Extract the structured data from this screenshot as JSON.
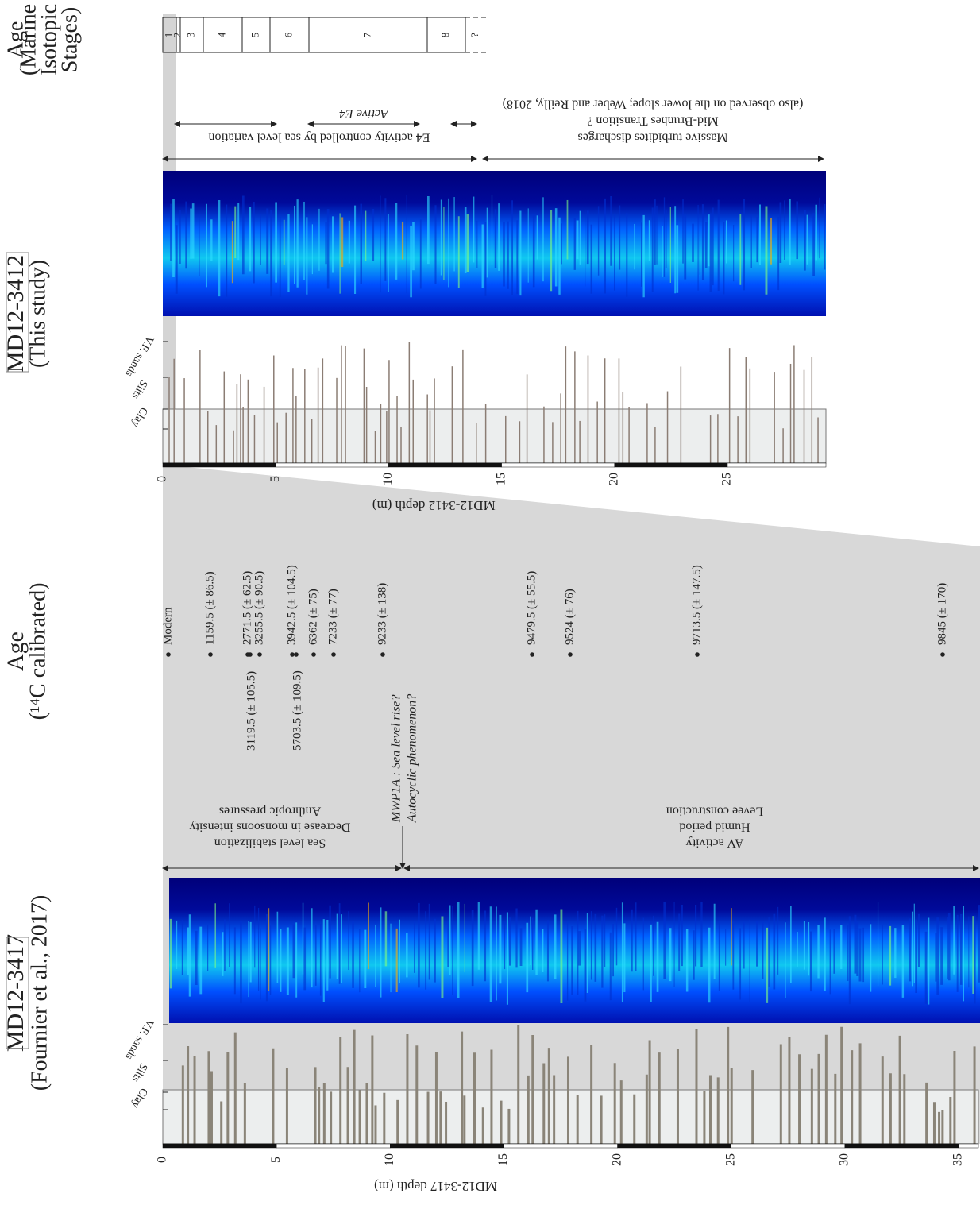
{
  "lower_core": {
    "title": "MD12-3417",
    "subtitle": "(Fournier et al., 2017)",
    "axis_label": "MD12-3417 depth (m)",
    "ticks": [
      "0",
      "5",
      "10",
      "15",
      "20",
      "25",
      "30",
      "35"
    ],
    "grain_labels": [
      "Clay",
      "Silts",
      "V.F. sands"
    ],
    "annotations": {
      "left": [
        "Sea level stabilization",
        "Decrease in monsoons intensity",
        "Anthropic pressures"
      ],
      "right": [
        "AV activity",
        "Humid period",
        "Levee construction"
      ],
      "event": [
        "MWP1A : Sea level rise?",
        "Autocyclic phenomenon?"
      ]
    }
  },
  "age_header": {
    "title": "Age",
    "subtitle": "(¹⁴C calibrated)"
  },
  "ages": [
    "Modern",
    "1159.5 (± 86.5)",
    "2771.5 (± 62.5)",
    "3255.5 (± 90.5)",
    "3119.5 (± 105.5)",
    "3942.5 (± 104.5)",
    "5703.5 (± 109.5)",
    "6362 (± 75)",
    "7233 (± 77)",
    "9233 (± 138)",
    "9479.5 (± 55.5)",
    "9524 (± 76)",
    "9713.5 (± 147.5)",
    "9845 (± 170)"
  ],
  "upper_core": {
    "title": "MD12-3412",
    "subtitle": "(This study)",
    "axis_label": "MD12-3412 depth (m)",
    "ticks": [
      "0",
      "5",
      "10",
      "15",
      "20",
      "25"
    ],
    "grain_labels": [
      "Clay",
      "Silts",
      "V.F. sands"
    ],
    "annotations": {
      "e4": "E4 activity controlled by sea level variation",
      "active": "Active E4",
      "right": [
        "Massive turbidites discharges",
        "Mid-Brunhes Transition ?",
        "(also observed on the lower slope; Weber and Reilly, 2018)"
      ]
    }
  },
  "mis_header": [
    "Age",
    "(Marine",
    "Isotopic",
    "Stages)"
  ],
  "mis": [
    "1",
    "2",
    "3",
    "4",
    "5",
    "6",
    "7",
    "8",
    "?"
  ]
}
